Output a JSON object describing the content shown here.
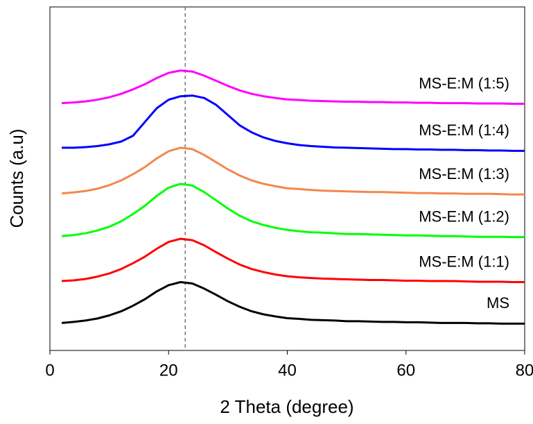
{
  "chart_data": {
    "type": "line",
    "xlabel": "2 Theta (degree)",
    "ylabel": "Counts (a.u)",
    "xlim": [
      0,
      80
    ],
    "xticks": [
      0,
      20,
      40,
      60,
      80
    ],
    "ylim": [
      0,
      100
    ],
    "reference_line_x": 22.8,
    "x": [
      2,
      4,
      6,
      8,
      10,
      12,
      14,
      16,
      18,
      20,
      22,
      24,
      26,
      28,
      30,
      32,
      34,
      36,
      38,
      40,
      42,
      44,
      46,
      48,
      50,
      52,
      54,
      56,
      58,
      60,
      62,
      64,
      66,
      68,
      70,
      72,
      74,
      76,
      78,
      80
    ],
    "series": [
      {
        "name": "MS",
        "color": "#000000",
        "values": [
          8.0,
          8.3,
          8.7,
          9.3,
          10.2,
          11.4,
          13.0,
          14.9,
          17.2,
          19.0,
          19.9,
          19.5,
          18.0,
          16.2,
          14.3,
          12.7,
          11.4,
          10.5,
          9.9,
          9.4,
          9.2,
          8.9,
          8.8,
          8.7,
          8.5,
          8.5,
          8.4,
          8.3,
          8.3,
          8.2,
          8.2,
          8.1,
          8.0,
          8.0,
          8.0,
          7.9,
          7.9,
          7.8,
          7.8,
          7.8
        ]
      },
      {
        "name": "MS-E:M (1:1)",
        "color": "#ff0000",
        "values": [
          20.2,
          20.4,
          20.8,
          21.5,
          22.4,
          23.7,
          25.4,
          27.3,
          29.6,
          31.6,
          32.5,
          32.1,
          30.6,
          28.6,
          26.7,
          25.0,
          23.7,
          22.8,
          22.1,
          21.6,
          21.3,
          21.1,
          20.9,
          20.8,
          20.7,
          20.6,
          20.5,
          20.5,
          20.4,
          20.3,
          20.3,
          20.2,
          20.2,
          20.2,
          20.1,
          20.0,
          20.0,
          20.0,
          19.9,
          19.9
        ]
      },
      {
        "name": "MS-E:M (1:2)",
        "color": "#00ff00",
        "values": [
          33.3,
          33.6,
          34.1,
          34.9,
          36.0,
          37.6,
          39.7,
          42.1,
          45.0,
          47.4,
          48.5,
          48.0,
          46.1,
          43.7,
          41.3,
          39.2,
          37.6,
          36.5,
          35.7,
          35.1,
          34.7,
          34.4,
          34.3,
          34.1,
          33.9,
          33.9,
          33.8,
          33.7,
          33.6,
          33.5,
          33.5,
          33.4,
          33.3,
          33.3,
          33.2,
          33.1,
          33.1,
          33.1,
          33.0,
          33.0
        ]
      },
      {
        "name": "MS-E:M (1:3)",
        "color": "#f4874b",
        "values": [
          45.7,
          46.0,
          46.4,
          47.1,
          48.1,
          49.5,
          51.3,
          53.4,
          55.9,
          58.0,
          59.0,
          58.6,
          56.9,
          54.8,
          52.7,
          50.9,
          49.5,
          48.5,
          47.8,
          47.2,
          47.0,
          46.7,
          46.5,
          46.4,
          46.3,
          46.2,
          46.1,
          46.1,
          46.0,
          45.9,
          45.8,
          45.8,
          45.7,
          45.7,
          45.6,
          45.6,
          45.6,
          45.5,
          45.4,
          45.4
        ]
      },
      {
        "name": "MS-E:M (1:4)",
        "color": "#0000ff",
        "values": [
          59.0,
          59.0,
          59.2,
          59.5,
          60.0,
          60.8,
          62.5,
          66.5,
          70.5,
          73.0,
          74.0,
          74.2,
          73.5,
          71.5,
          68.5,
          65.5,
          63.5,
          62.0,
          61.0,
          60.3,
          59.8,
          59.5,
          59.3,
          59.1,
          59.0,
          58.9,
          58.8,
          58.7,
          58.6,
          58.6,
          58.5,
          58.5,
          58.4,
          58.4,
          58.3,
          58.3,
          58.2,
          58.2,
          58.1,
          58.1
        ]
      },
      {
        "name": "MS-E:M (1:5)",
        "color": "#ff00ff",
        "values": [
          72.0,
          72.2,
          72.5,
          73.0,
          73.7,
          74.7,
          76.0,
          77.5,
          79.3,
          80.8,
          81.5,
          81.2,
          80.0,
          78.5,
          77.0,
          75.7,
          74.7,
          74.0,
          73.5,
          73.1,
          72.9,
          72.7,
          72.6,
          72.5,
          72.4,
          72.4,
          72.3,
          72.3,
          72.2,
          72.2,
          72.1,
          72.1,
          72.0,
          72.0,
          72.0,
          71.9,
          71.9,
          71.9,
          71.8,
          71.8
        ]
      }
    ]
  }
}
